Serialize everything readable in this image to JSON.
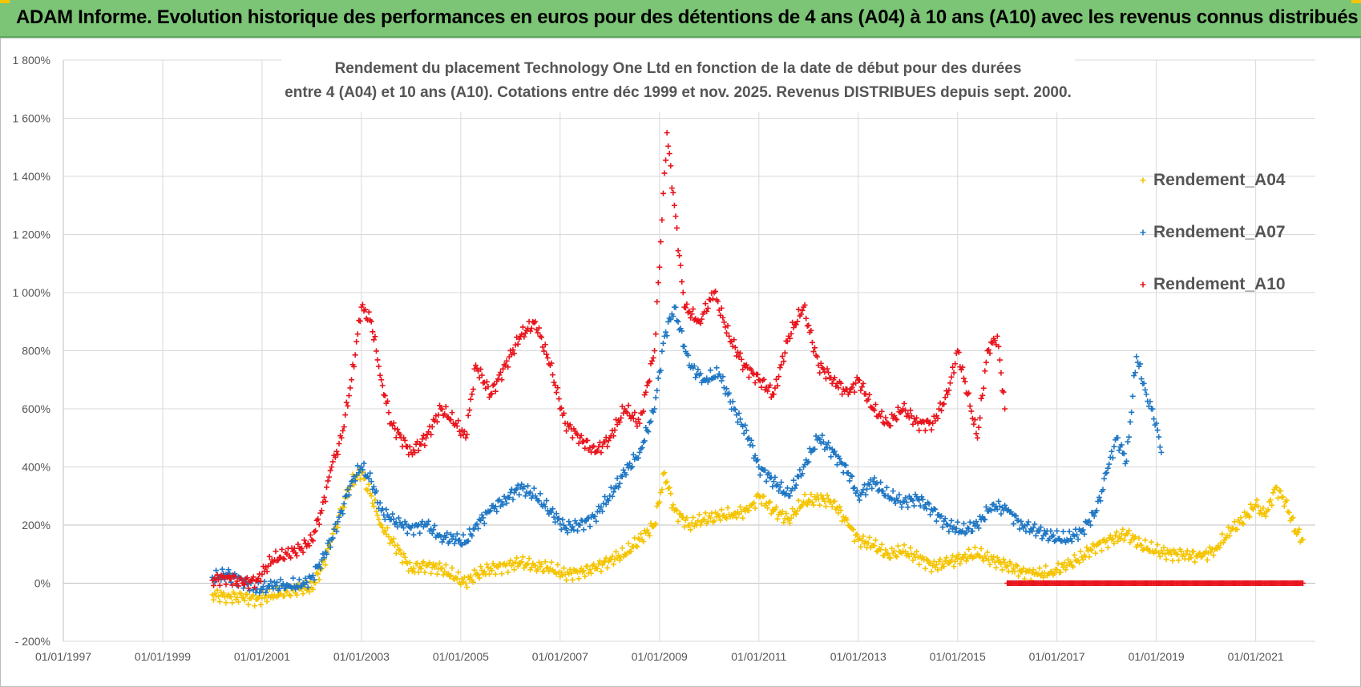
{
  "banner": {
    "title": "ADAM Informe. Evolution historique des performances en euros pour des détentions de 4 ans (A04) à 10 ans (A10) avec les revenus connus distribués"
  },
  "colors": {
    "banner_bg": "#7cc576",
    "a04": "#f5c400",
    "a07": "#1f77c4",
    "a10": "#e8141c",
    "grid": "#d9d9d9",
    "zero_line": "#bfbfbf"
  },
  "chart_data": {
    "type": "scatter",
    "title": "Rendement du placement Technology One Ltd en fonction de la date de début pour des durées",
    "subtitle": "entre 4 (A04) et 10 ans (A10).  Cotations entre déc 1999 et nov. 2025.  Revenus DISTRIBUES depuis sept. 2000.",
    "xlabel": "",
    "ylabel": "",
    "xlim": [
      1997.0,
      2022.2
    ],
    "ylim": [
      -200,
      1800
    ],
    "y_ticks": [
      {
        "value": -200,
        "label": "- 200%"
      },
      {
        "value": 0,
        "label": "0%"
      },
      {
        "value": 200,
        "label": "200%"
      },
      {
        "value": 400,
        "label": "400%"
      },
      {
        "value": 600,
        "label": "600%"
      },
      {
        "value": 800,
        "label": "800%"
      },
      {
        "value": 1000,
        "label": "1 000%"
      },
      {
        "value": 1200,
        "label": "1 200%"
      },
      {
        "value": 1400,
        "label": "1 400%"
      },
      {
        "value": 1600,
        "label": "1 600%"
      },
      {
        "value": 1800,
        "label": "1 800%"
      }
    ],
    "x_ticks": [
      {
        "value": 1997,
        "label": "01/01/1997"
      },
      {
        "value": 1999,
        "label": "01/01/1999"
      },
      {
        "value": 2001,
        "label": "01/01/2001"
      },
      {
        "value": 2003,
        "label": "01/01/2003"
      },
      {
        "value": 2005,
        "label": "01/01/2005"
      },
      {
        "value": 2007,
        "label": "01/01/2007"
      },
      {
        "value": 2009,
        "label": "01/01/2009"
      },
      {
        "value": 2011,
        "label": "01/01/2011"
      },
      {
        "value": 2013,
        "label": "01/01/2013"
      },
      {
        "value": 2015,
        "label": "01/01/2015"
      },
      {
        "value": 2017,
        "label": "01/01/2017"
      },
      {
        "value": 2019,
        "label": "01/01/2019"
      },
      {
        "value": 2021,
        "label": "01/01/2021"
      }
    ],
    "legend_position": "top-right",
    "series": [
      {
        "name": "Rendement_A04",
        "color": "#f5c400",
        "points": [
          [
            2000.0,
            -40
          ],
          [
            2000.3,
            -45
          ],
          [
            2000.6,
            -50
          ],
          [
            2000.9,
            -55
          ],
          [
            2001.2,
            -40
          ],
          [
            2001.5,
            -30
          ],
          [
            2001.8,
            -20
          ],
          [
            2002.0,
            -15
          ],
          [
            2002.2,
            50
          ],
          [
            2002.4,
            150
          ],
          [
            2002.6,
            250
          ],
          [
            2002.8,
            350
          ],
          [
            2003.0,
            380
          ],
          [
            2003.2,
            300
          ],
          [
            2003.4,
            200
          ],
          [
            2003.6,
            150
          ],
          [
            2003.8,
            100
          ],
          [
            2004.0,
            50
          ],
          [
            2004.3,
            60
          ],
          [
            2004.6,
            50
          ],
          [
            2004.9,
            20
          ],
          [
            2005.1,
            0
          ],
          [
            2005.3,
            30
          ],
          [
            2005.6,
            50
          ],
          [
            2005.9,
            60
          ],
          [
            2006.2,
            70
          ],
          [
            2006.5,
            60
          ],
          [
            2006.8,
            50
          ],
          [
            2007.1,
            30
          ],
          [
            2007.4,
            40
          ],
          [
            2007.7,
            50
          ],
          [
            2008.0,
            80
          ],
          [
            2008.3,
            100
          ],
          [
            2008.6,
            150
          ],
          [
            2008.9,
            200
          ],
          [
            2009.1,
            380
          ],
          [
            2009.3,
            250
          ],
          [
            2009.6,
            200
          ],
          [
            2009.9,
            220
          ],
          [
            2010.2,
            230
          ],
          [
            2010.5,
            240
          ],
          [
            2010.8,
            250
          ],
          [
            2011.0,
            300
          ],
          [
            2011.3,
            250
          ],
          [
            2011.6,
            220
          ],
          [
            2011.9,
            280
          ],
          [
            2012.2,
            290
          ],
          [
            2012.5,
            280
          ],
          [
            2012.8,
            200
          ],
          [
            2013.0,
            150
          ],
          [
            2013.3,
            130
          ],
          [
            2013.6,
            100
          ],
          [
            2013.9,
            110
          ],
          [
            2014.2,
            90
          ],
          [
            2014.5,
            60
          ],
          [
            2014.8,
            70
          ],
          [
            2015.1,
            90
          ],
          [
            2015.4,
            100
          ],
          [
            2015.7,
            80
          ],
          [
            2016.0,
            60
          ],
          [
            2016.3,
            40
          ],
          [
            2016.6,
            30
          ],
          [
            2016.9,
            40
          ],
          [
            2017.2,
            60
          ],
          [
            2017.5,
            90
          ],
          [
            2017.8,
            130
          ],
          [
            2018.1,
            150
          ],
          [
            2018.4,
            170
          ],
          [
            2018.7,
            130
          ],
          [
            2019.0,
            110
          ],
          [
            2019.3,
            100
          ],
          [
            2019.6,
            100
          ],
          [
            2019.9,
            90
          ],
          [
            2020.2,
            120
          ],
          [
            2020.5,
            180
          ],
          [
            2020.8,
            230
          ],
          [
            2021.0,
            270
          ],
          [
            2021.2,
            230
          ],
          [
            2021.4,
            330
          ],
          [
            2021.6,
            280
          ],
          [
            2021.8,
            180
          ],
          [
            2021.95,
            150
          ]
        ]
      },
      {
        "name": "Rendement_A07",
        "color": "#1f77c4",
        "points": [
          [
            2000.0,
            20
          ],
          [
            2000.3,
            30
          ],
          [
            2000.6,
            10
          ],
          [
            2000.9,
            -20
          ],
          [
            2001.2,
            -10
          ],
          [
            2001.5,
            -5
          ],
          [
            2001.8,
            -10
          ],
          [
            2002.0,
            20
          ],
          [
            2002.2,
            80
          ],
          [
            2002.4,
            150
          ],
          [
            2002.6,
            250
          ],
          [
            2002.8,
            350
          ],
          [
            2003.0,
            400
          ],
          [
            2003.2,
            350
          ],
          [
            2003.4,
            250
          ],
          [
            2003.6,
            220
          ],
          [
            2003.8,
            200
          ],
          [
            2004.0,
            190
          ],
          [
            2004.3,
            200
          ],
          [
            2004.6,
            160
          ],
          [
            2004.9,
            150
          ],
          [
            2005.1,
            140
          ],
          [
            2005.3,
            200
          ],
          [
            2005.6,
            250
          ],
          [
            2005.9,
            290
          ],
          [
            2006.2,
            330
          ],
          [
            2006.5,
            300
          ],
          [
            2006.8,
            250
          ],
          [
            2007.1,
            190
          ],
          [
            2007.4,
            200
          ],
          [
            2007.7,
            230
          ],
          [
            2008.0,
            300
          ],
          [
            2008.3,
            380
          ],
          [
            2008.6,
            450
          ],
          [
            2008.9,
            600
          ],
          [
            2009.1,
            850
          ],
          [
            2009.3,
            950
          ],
          [
            2009.6,
            750
          ],
          [
            2009.9,
            700
          ],
          [
            2010.2,
            720
          ],
          [
            2010.5,
            600
          ],
          [
            2010.8,
            500
          ],
          [
            2011.0,
            400
          ],
          [
            2011.3,
            350
          ],
          [
            2011.6,
            300
          ],
          [
            2011.9,
            400
          ],
          [
            2012.2,
            500
          ],
          [
            2012.5,
            450
          ],
          [
            2012.8,
            380
          ],
          [
            2013.0,
            300
          ],
          [
            2013.3,
            350
          ],
          [
            2013.6,
            300
          ],
          [
            2013.9,
            280
          ],
          [
            2014.2,
            290
          ],
          [
            2014.5,
            250
          ],
          [
            2014.8,
            200
          ],
          [
            2015.1,
            180
          ],
          [
            2015.4,
            200
          ],
          [
            2015.7,
            270
          ],
          [
            2016.0,
            250
          ],
          [
            2016.3,
            200
          ],
          [
            2016.6,
            180
          ],
          [
            2016.9,
            160
          ],
          [
            2017.2,
            150
          ],
          [
            2017.5,
            180
          ],
          [
            2017.8,
            250
          ],
          [
            2018.0,
            380
          ],
          [
            2018.2,
            500
          ],
          [
            2018.4,
            420
          ],
          [
            2018.6,
            780
          ],
          [
            2018.8,
            650
          ],
          [
            2019.0,
            550
          ],
          [
            2019.1,
            450
          ]
        ]
      },
      {
        "name": "Rendement_A10",
        "color": "#e8141c",
        "points": [
          [
            2000.0,
            10
          ],
          [
            2000.3,
            20
          ],
          [
            2000.6,
            0
          ],
          [
            2000.9,
            10
          ],
          [
            2001.2,
            80
          ],
          [
            2001.5,
            100
          ],
          [
            2001.8,
            120
          ],
          [
            2002.0,
            150
          ],
          [
            2002.2,
            250
          ],
          [
            2002.4,
            400
          ],
          [
            2002.6,
            500
          ],
          [
            2002.8,
            700
          ],
          [
            2003.0,
            950
          ],
          [
            2003.2,
            900
          ],
          [
            2003.4,
            700
          ],
          [
            2003.6,
            550
          ],
          [
            2003.8,
            500
          ],
          [
            2004.0,
            450
          ],
          [
            2004.3,
            500
          ],
          [
            2004.6,
            600
          ],
          [
            2004.9,
            550
          ],
          [
            2005.1,
            500
          ],
          [
            2005.3,
            750
          ],
          [
            2005.6,
            650
          ],
          [
            2005.9,
            750
          ],
          [
            2006.2,
            850
          ],
          [
            2006.5,
            900
          ],
          [
            2006.8,
            750
          ],
          [
            2007.1,
            550
          ],
          [
            2007.4,
            500
          ],
          [
            2007.7,
            450
          ],
          [
            2008.0,
            500
          ],
          [
            2008.3,
            600
          ],
          [
            2008.6,
            550
          ],
          [
            2008.9,
            800
          ],
          [
            2009.05,
            1250
          ],
          [
            2009.15,
            1550
          ],
          [
            2009.3,
            1300
          ],
          [
            2009.5,
            950
          ],
          [
            2009.8,
            900
          ],
          [
            2010.1,
            1000
          ],
          [
            2010.4,
            850
          ],
          [
            2010.7,
            750
          ],
          [
            2011.0,
            700
          ],
          [
            2011.3,
            650
          ],
          [
            2011.6,
            850
          ],
          [
            2011.9,
            950
          ],
          [
            2012.2,
            750
          ],
          [
            2012.5,
            700
          ],
          [
            2012.8,
            650
          ],
          [
            2013.0,
            700
          ],
          [
            2013.3,
            600
          ],
          [
            2013.6,
            550
          ],
          [
            2013.9,
            600
          ],
          [
            2014.2,
            550
          ],
          [
            2014.5,
            550
          ],
          [
            2014.8,
            650
          ],
          [
            2015.0,
            800
          ],
          [
            2015.2,
            650
          ],
          [
            2015.4,
            500
          ],
          [
            2015.6,
            800
          ],
          [
            2015.8,
            850
          ],
          [
            2015.95,
            600
          ],
          [
            2016.0,
            0
          ],
          [
            2016.5,
            0
          ],
          [
            2017.0,
            0
          ],
          [
            2017.5,
            0
          ],
          [
            2018.0,
            0
          ],
          [
            2018.5,
            0
          ],
          [
            2019.0,
            0
          ],
          [
            2019.5,
            0
          ],
          [
            2020.0,
            0
          ],
          [
            2020.5,
            0
          ],
          [
            2021.0,
            0
          ],
          [
            2021.5,
            0
          ],
          [
            2021.95,
            0
          ]
        ]
      }
    ]
  }
}
